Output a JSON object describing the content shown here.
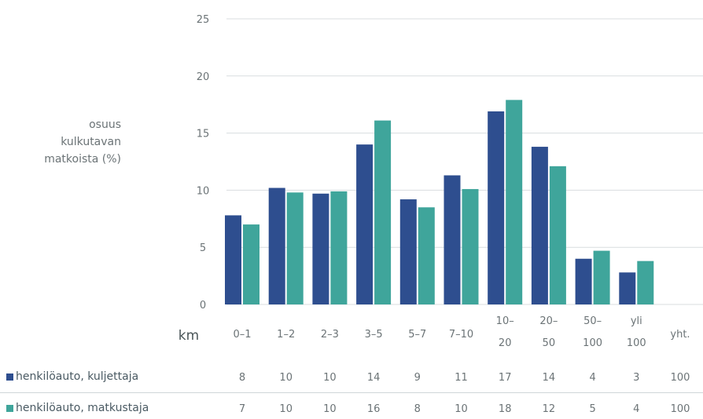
{
  "chart_data": {
    "type": "bar",
    "ylabel_lines": [
      "osuus",
      "kulkutavan",
      "matkoista (%)"
    ],
    "x_unit_label": "km",
    "categories": [
      [
        "0–1"
      ],
      [
        "1–2"
      ],
      [
        "2–3"
      ],
      [
        "3–5"
      ],
      [
        "5–7"
      ],
      [
        "7–10"
      ],
      [
        "10–",
        "20"
      ],
      [
        "20–",
        "50"
      ],
      [
        "50–",
        "100"
      ],
      [
        "yli",
        "100"
      ]
    ],
    "total_label": "yht.",
    "ylim": [
      0,
      25
    ],
    "yticks": [
      "0",
      "5",
      "10",
      "15",
      "20",
      "25"
    ],
    "grid": true,
    "series": [
      {
        "name": "henkilöauto, kuljettaja",
        "color": "#2e4e8f",
        "values": [
          7.8,
          10.2,
          9.7,
          14.0,
          9.2,
          11.3,
          16.9,
          13.8,
          4.0,
          2.8
        ],
        "table_values": [
          "8",
          "10",
          "10",
          "14",
          "9",
          "11",
          "17",
          "14",
          "4",
          "3",
          "100"
        ]
      },
      {
        "name": "henkilöauto, matkustaja",
        "color": "#3fa59b",
        "values": [
          7.0,
          9.8,
          9.9,
          16.1,
          8.5,
          10.1,
          17.9,
          12.1,
          4.7,
          3.8
        ],
        "table_values": [
          "7",
          "10",
          "10",
          "16",
          "8",
          "10",
          "18",
          "12",
          "5",
          "4",
          "100"
        ]
      }
    ]
  }
}
